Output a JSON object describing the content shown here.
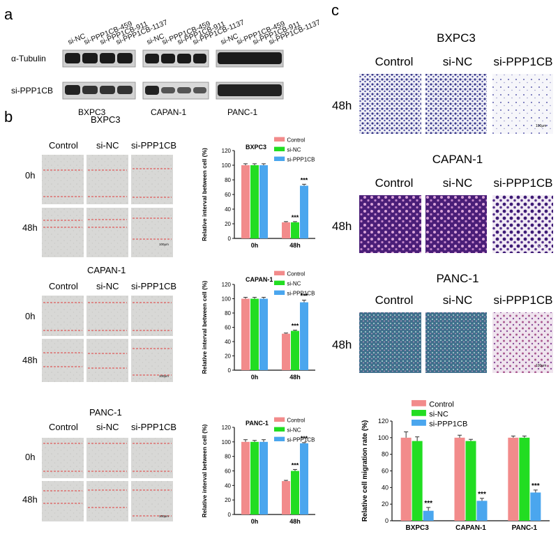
{
  "panel_letters": {
    "a": "a",
    "b": "b",
    "c": "c"
  },
  "panel_a": {
    "lane_labels": [
      "si-NC",
      "si-PPP1CB-459",
      "si-PPP1CB-911",
      "si-PPP1CB-1137"
    ],
    "row_labels": [
      "α-Tubulin",
      "si-PPP1CB"
    ],
    "cell_lines": [
      "BXPC3",
      "CAPAN-1",
      "PANC-1"
    ]
  },
  "panel_b": {
    "column_headers": [
      "Control",
      "si-NC",
      "si-PPP1CB"
    ],
    "time_labels": [
      "0h",
      "48h"
    ],
    "scale_bar": "100μm",
    "blocks": [
      {
        "title": "BXPC3"
      },
      {
        "title": "CAPAN-1"
      },
      {
        "title": "PANC-1"
      }
    ]
  },
  "panel_c": {
    "column_headers": [
      "Control",
      "si-NC",
      "si-PPP1CB"
    ],
    "time_label": "48h",
    "scale_bar": "100μm",
    "blocks": [
      {
        "title": "BXPC3"
      },
      {
        "title": "CAPAN-1"
      },
      {
        "title": "PANC-1"
      }
    ]
  },
  "colors": {
    "control": "#f28b8b",
    "si_nc": "#22dd22",
    "si_ppp1cb": "#4aa6ee"
  },
  "chart_data": [
    {
      "type": "bar",
      "title": "BXPC3",
      "ylabel": "Relative interval between cell (%)",
      "categories": [
        "0h",
        "48h"
      ],
      "ylim": [
        0,
        120
      ],
      "yticks": [
        0,
        20,
        40,
        60,
        80,
        100,
        120
      ],
      "legend": "top-right",
      "series": [
        {
          "name": "Control",
          "values": [
            100,
            22
          ],
          "errors": [
            2,
            1
          ]
        },
        {
          "name": "si-NC",
          "values": [
            100,
            22
          ],
          "errors": [
            2,
            1
          ]
        },
        {
          "name": "si-PPP1CB",
          "values": [
            100,
            72
          ],
          "errors": [
            2,
            2
          ]
        }
      ],
      "significance": [
        {
          "category": 1,
          "series": 1,
          "label": "***"
        },
        {
          "category": 1,
          "series": 2,
          "label": "***"
        }
      ]
    },
    {
      "type": "bar",
      "title": "CAPAN-1",
      "ylabel": "Relative interval between cell (%)",
      "categories": [
        "0h",
        "48h"
      ],
      "ylim": [
        0,
        120
      ],
      "yticks": [
        0,
        20,
        40,
        60,
        80,
        100,
        120
      ],
      "legend": "top-right",
      "series": [
        {
          "name": "Control",
          "values": [
            100,
            51
          ],
          "errors": [
            2,
            1
          ]
        },
        {
          "name": "si-NC",
          "values": [
            100,
            55
          ],
          "errors": [
            2,
            1
          ]
        },
        {
          "name": "si-PPP1CB",
          "values": [
            100,
            95
          ],
          "errors": [
            2,
            3
          ]
        }
      ],
      "significance": [
        {
          "category": 1,
          "series": 1,
          "label": "***"
        },
        {
          "category": 1,
          "series": 2,
          "label": "***"
        }
      ]
    },
    {
      "type": "bar",
      "title": "PANC-1",
      "ylabel": "Relative interval between cell (%)",
      "categories": [
        "0h",
        "48h"
      ],
      "ylim": [
        0,
        120
      ],
      "yticks": [
        0,
        20,
        40,
        60,
        80,
        100,
        120
      ],
      "legend": "top-right",
      "series": [
        {
          "name": "Control",
          "values": [
            100,
            46
          ],
          "errors": [
            3,
            1
          ]
        },
        {
          "name": "si-NC",
          "values": [
            100,
            60
          ],
          "errors": [
            2,
            2
          ]
        },
        {
          "name": "si-PPP1CB",
          "values": [
            100,
            98
          ],
          "errors": [
            3,
            1
          ]
        }
      ],
      "significance": [
        {
          "category": 1,
          "series": 1,
          "label": "***"
        },
        {
          "category": 1,
          "series": 2,
          "label": "***"
        }
      ]
    },
    {
      "type": "bar",
      "title": "",
      "ylabel": "Relative cell migration rate (%)",
      "categories": [
        "BXPC3",
        "CAPAN-1",
        "PANC-1"
      ],
      "ylim": [
        0,
        120
      ],
      "yticks": [
        0,
        20,
        40,
        60,
        80,
        100,
        120
      ],
      "legend": "top-left",
      "series": [
        {
          "name": "Control",
          "values": [
            100,
            100,
            100
          ],
          "errors": [
            7,
            3,
            2
          ]
        },
        {
          "name": "si-NC",
          "values": [
            96,
            96,
            100
          ],
          "errors": [
            5,
            2,
            2
          ]
        },
        {
          "name": "si-PPP1CB",
          "values": [
            12,
            24,
            34
          ],
          "errors": [
            4,
            3,
            3
          ]
        }
      ],
      "significance": [
        {
          "category": 0,
          "series": 2,
          "label": "***"
        },
        {
          "category": 1,
          "series": 2,
          "label": "***"
        },
        {
          "category": 2,
          "series": 2,
          "label": "***"
        }
      ]
    }
  ]
}
